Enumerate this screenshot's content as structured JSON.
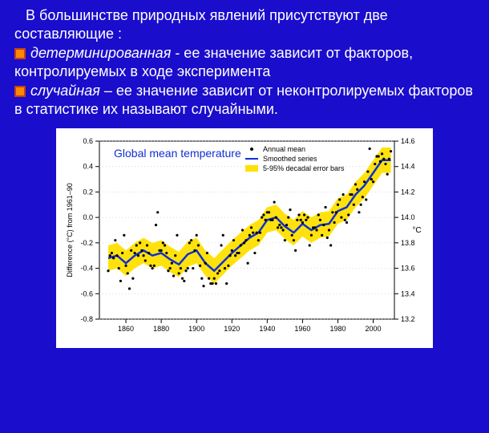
{
  "text": {
    "lead": "В большинстве природных явлений присутствуют две составляющие :",
    "bullet1_em": "детерминированная",
    "bullet1_rest": " - ее значение зависит от факторов, контролируемых в ходе эксперимента",
    "bullet2_em": "случайная",
    "bullet2_rest": " – ее значение зависит от неконтролируемых факторов в статистике их называют случайными."
  },
  "chart": {
    "type": "line+scatter+band",
    "title": "Global mean temperature",
    "title_fontsize": 14,
    "title_color": "#1030d0",
    "legend": [
      {
        "marker": "dot",
        "color": "#000000",
        "label": "Annual mean"
      },
      {
        "marker": "line",
        "color": "#1030d0",
        "label": "Smoothed series"
      },
      {
        "marker": "band",
        "color": "#ffe000",
        "label": "5-95% decadal error bars"
      }
    ],
    "legend_fontsize": 9,
    "xlim": [
      1845,
      2012
    ],
    "xticks": [
      1860,
      1880,
      1900,
      1920,
      1940,
      1960,
      1980,
      2000
    ],
    "ylim": [
      -0.8,
      0.6
    ],
    "yticks": [
      -0.8,
      -0.6,
      -0.4,
      -0.2,
      0.0,
      0.2,
      0.4,
      0.6
    ],
    "ylabel": "Difference (°C) from 1961–90",
    "ylabel_fontsize": 9,
    "y2lim": [
      13.2,
      14.6
    ],
    "y2ticks": [
      13.2,
      13.4,
      13.6,
      13.8,
      14.0,
      14.2,
      14.4,
      14.6
    ],
    "y2label": "°C",
    "y2label_fontsize": 10,
    "background_color": "#ffffff",
    "axis_color": "#000000",
    "grid_color": "#c8c8c8",
    "tick_fontsize": 9,
    "band_color": "#ffe000",
    "smoothed_color": "#1030d0",
    "smoothed_width": 2.5,
    "dot_color": "#000000",
    "dot_radius": 1.6,
    "smoothed": [
      [
        1850,
        -0.32
      ],
      [
        1855,
        -0.3
      ],
      [
        1860,
        -0.36
      ],
      [
        1865,
        -0.3
      ],
      [
        1870,
        -0.26
      ],
      [
        1875,
        -0.3
      ],
      [
        1880,
        -0.28
      ],
      [
        1885,
        -0.33
      ],
      [
        1890,
        -0.37
      ],
      [
        1895,
        -0.29
      ],
      [
        1900,
        -0.26
      ],
      [
        1905,
        -0.36
      ],
      [
        1910,
        -0.42
      ],
      [
        1915,
        -0.35
      ],
      [
        1920,
        -0.28
      ],
      [
        1925,
        -0.22
      ],
      [
        1930,
        -0.16
      ],
      [
        1935,
        -0.12
      ],
      [
        1940,
        -0.02
      ],
      [
        1945,
        0.0
      ],
      [
        1950,
        -0.07
      ],
      [
        1955,
        -0.12
      ],
      [
        1960,
        -0.05
      ],
      [
        1965,
        -0.1
      ],
      [
        1970,
        -0.06
      ],
      [
        1975,
        -0.05
      ],
      [
        1980,
        0.05
      ],
      [
        1985,
        0.08
      ],
      [
        1990,
        0.18
      ],
      [
        1995,
        0.25
      ],
      [
        2000,
        0.35
      ],
      [
        2005,
        0.45
      ],
      [
        2010,
        0.45
      ]
    ],
    "band_half_width": 0.1,
    "annual": [
      [
        1850,
        -0.42
      ],
      [
        1851,
        -0.3
      ],
      [
        1852,
        -0.28
      ],
      [
        1853,
        -0.32
      ],
      [
        1854,
        -0.18
      ],
      [
        1855,
        -0.3
      ],
      [
        1856,
        -0.4
      ],
      [
        1857,
        -0.5
      ],
      [
        1858,
        -0.28
      ],
      [
        1859,
        -0.14
      ],
      [
        1860,
        -0.38
      ],
      [
        1861,
        -0.44
      ],
      [
        1862,
        -0.56
      ],
      [
        1863,
        -0.26
      ],
      [
        1864,
        -0.48
      ],
      [
        1865,
        -0.28
      ],
      [
        1866,
        -0.22
      ],
      [
        1867,
        -0.3
      ],
      [
        1868,
        -0.2
      ],
      [
        1869,
        -0.26
      ],
      [
        1870,
        -0.3
      ],
      [
        1871,
        -0.34
      ],
      [
        1872,
        -0.22
      ],
      [
        1873,
        -0.28
      ],
      [
        1874,
        -0.38
      ],
      [
        1875,
        -0.4
      ],
      [
        1876,
        -0.38
      ],
      [
        1877,
        -0.06
      ],
      [
        1878,
        0.04
      ],
      [
        1879,
        -0.26
      ],
      [
        1880,
        -0.26
      ],
      [
        1881,
        -0.2
      ],
      [
        1882,
        -0.22
      ],
      [
        1883,
        -0.28
      ],
      [
        1884,
        -0.42
      ],
      [
        1885,
        -0.4
      ],
      [
        1886,
        -0.36
      ],
      [
        1887,
        -0.46
      ],
      [
        1888,
        -0.3
      ],
      [
        1889,
        -0.14
      ],
      [
        1890,
        -0.44
      ],
      [
        1891,
        -0.4
      ],
      [
        1892,
        -0.48
      ],
      [
        1893,
        -0.5
      ],
      [
        1894,
        -0.42
      ],
      [
        1895,
        -0.4
      ],
      [
        1896,
        -0.2
      ],
      [
        1897,
        -0.18
      ],
      [
        1898,
        -0.4
      ],
      [
        1899,
        -0.26
      ],
      [
        1900,
        -0.14
      ],
      [
        1901,
        -0.22
      ],
      [
        1902,
        -0.38
      ],
      [
        1903,
        -0.48
      ],
      [
        1904,
        -0.54
      ],
      [
        1905,
        -0.36
      ],
      [
        1906,
        -0.28
      ],
      [
        1907,
        -0.48
      ],
      [
        1908,
        -0.52
      ],
      [
        1909,
        -0.52
      ],
      [
        1910,
        -0.48
      ],
      [
        1911,
        -0.52
      ],
      [
        1912,
        -0.44
      ],
      [
        1913,
        -0.42
      ],
      [
        1914,
        -0.22
      ],
      [
        1915,
        -0.14
      ],
      [
        1916,
        -0.4
      ],
      [
        1917,
        -0.52
      ],
      [
        1918,
        -0.38
      ],
      [
        1919,
        -0.3
      ],
      [
        1920,
        -0.26
      ],
      [
        1921,
        -0.18
      ],
      [
        1922,
        -0.3
      ],
      [
        1923,
        -0.28
      ],
      [
        1924,
        -0.28
      ],
      [
        1925,
        -0.22
      ],
      [
        1926,
        -0.1
      ],
      [
        1927,
        -0.2
      ],
      [
        1928,
        -0.18
      ],
      [
        1929,
        -0.36
      ],
      [
        1930,
        -0.14
      ],
      [
        1931,
        -0.08
      ],
      [
        1932,
        -0.12
      ],
      [
        1933,
        -0.28
      ],
      [
        1934,
        -0.12
      ],
      [
        1935,
        -0.18
      ],
      [
        1936,
        -0.12
      ],
      [
        1937,
        0.0
      ],
      [
        1938,
        0.02
      ],
      [
        1939,
        -0.02
      ],
      [
        1940,
        0.04
      ],
      [
        1941,
        0.04
      ],
      [
        1942,
        -0.02
      ],
      [
        1943,
        -0.02
      ],
      [
        1944,
        0.12
      ],
      [
        1945,
        0.0
      ],
      [
        1946,
        -0.08
      ],
      [
        1947,
        -0.06
      ],
      [
        1948,
        -0.08
      ],
      [
        1949,
        -0.1
      ],
      [
        1950,
        -0.18
      ],
      [
        1951,
        -0.06
      ],
      [
        1952,
        0.0
      ],
      [
        1953,
        0.06
      ],
      [
        1954,
        -0.14
      ],
      [
        1955,
        -0.18
      ],
      [
        1956,
        -0.26
      ],
      [
        1957,
        -0.02
      ],
      [
        1958,
        0.02
      ],
      [
        1959,
        -0.02
      ],
      [
        1960,
        -0.04
      ],
      [
        1961,
        0.02
      ],
      [
        1962,
        -0.02
      ],
      [
        1963,
        0.0
      ],
      [
        1964,
        -0.22
      ],
      [
        1965,
        -0.14
      ],
      [
        1966,
        -0.08
      ],
      [
        1967,
        -0.08
      ],
      [
        1968,
        -0.1
      ],
      [
        1969,
        0.02
      ],
      [
        1970,
        -0.02
      ],
      [
        1971,
        -0.14
      ],
      [
        1972,
        -0.06
      ],
      [
        1973,
        0.08
      ],
      [
        1974,
        -0.16
      ],
      [
        1975,
        -0.1
      ],
      [
        1976,
        -0.22
      ],
      [
        1977,
        0.04
      ],
      [
        1978,
        -0.04
      ],
      [
        1979,
        0.04
      ],
      [
        1980,
        0.1
      ],
      [
        1981,
        0.14
      ],
      [
        1982,
        0.0
      ],
      [
        1983,
        0.18
      ],
      [
        1984,
        -0.02
      ],
      [
        1985,
        -0.04
      ],
      [
        1986,
        0.02
      ],
      [
        1987,
        0.18
      ],
      [
        1988,
        0.18
      ],
      [
        1989,
        0.1
      ],
      [
        1990,
        0.26
      ],
      [
        1991,
        0.22
      ],
      [
        1992,
        0.04
      ],
      [
        1993,
        0.1
      ],
      [
        1994,
        0.16
      ],
      [
        1995,
        0.28
      ],
      [
        1996,
        0.14
      ],
      [
        1997,
        0.36
      ],
      [
        1998,
        0.54
      ],
      [
        1999,
        0.3
      ],
      [
        2000,
        0.28
      ],
      [
        2001,
        0.42
      ],
      [
        2002,
        0.48
      ],
      [
        2003,
        0.48
      ],
      [
        2004,
        0.44
      ],
      [
        2005,
        0.5
      ],
      [
        2006,
        0.46
      ],
      [
        2007,
        0.42
      ],
      [
        2008,
        0.34
      ],
      [
        2009,
        0.46
      ],
      [
        2010,
        0.52
      ]
    ]
  }
}
